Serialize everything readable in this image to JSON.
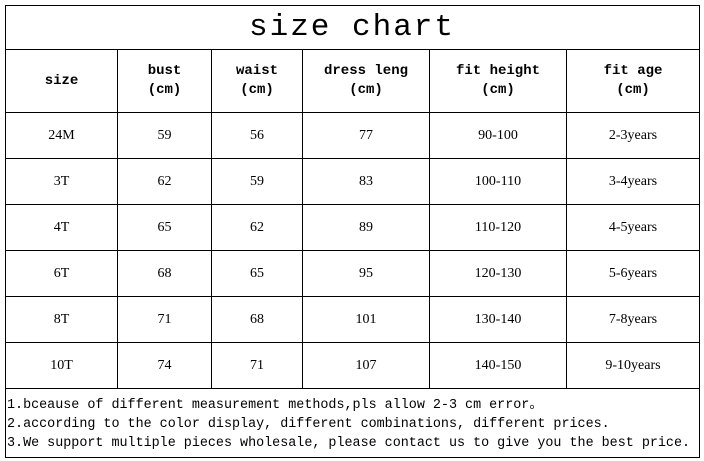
{
  "title": "size chart",
  "table": {
    "header": [
      [
        "size"
      ],
      [
        "bust",
        "(cm)"
      ],
      [
        "waist",
        "(cm)"
      ],
      [
        "dress leng",
        "(cm)"
      ],
      [
        "fit height",
        "(cm)"
      ],
      [
        "fit age",
        "(cm)"
      ]
    ],
    "rows": [
      [
        "24M",
        "59",
        "56",
        "77",
        "90-100",
        "2-3years"
      ],
      [
        "3T",
        "62",
        "59",
        "83",
        "100-110",
        "3-4years"
      ],
      [
        "4T",
        "65",
        "62",
        "89",
        "110-120",
        "4-5years"
      ],
      [
        "6T",
        "68",
        "65",
        "95",
        "120-130",
        "5-6years"
      ],
      [
        "8T",
        "71",
        "68",
        "101",
        "130-140",
        "7-8years"
      ],
      [
        "10T",
        "74",
        "71",
        "107",
        "140-150",
        "9-10years"
      ]
    ]
  },
  "notes": [
    "1.bceause of different measurement methods,pls allow 2-3 cm error。",
    "2.according to the color display, different combinations, different prices.",
    "3.We support multiple pieces wholesale, please contact us to give you the best price."
  ]
}
